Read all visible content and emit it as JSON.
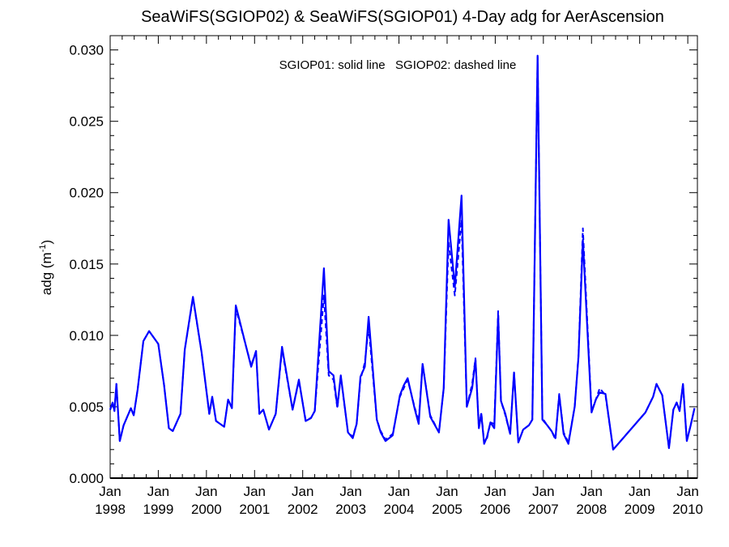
{
  "chart_data": {
    "type": "line",
    "title": "SeaWiFS(SGIOP02) & SeaWiFS(SGIOP01) 4-Day adg for AerAscension",
    "annotation": "SGIOP01: solid line   SGIOP02: dashed line",
    "ylabel_main": "adg (m",
    "ylabel_sup": "-1",
    "ylabel_close": ")",
    "xlabel": "",
    "ylim": [
      0,
      0.031
    ],
    "xlim": [
      1998.0,
      2010.2
    ],
    "yticks": [
      "0.000",
      "0.005",
      "0.010",
      "0.015",
      "0.020",
      "0.025",
      "0.030"
    ],
    "ytick_values": [
      0,
      0.005,
      0.01,
      0.015,
      0.02,
      0.025,
      0.03
    ],
    "xtick_month": "Jan",
    "xtick_years": [
      "1998",
      "1999",
      "2000",
      "2001",
      "2002",
      "2003",
      "2004",
      "2005",
      "2006",
      "2007",
      "2008",
      "2009",
      "2010"
    ],
    "line_color": "#0000ff",
    "zero_line_color": "#000000",
    "series": [
      {
        "name": "SGIOP01",
        "style": "solid",
        "x": [
          1998.0,
          1998.05,
          1998.09,
          1998.13,
          1998.2,
          1998.28,
          1998.43,
          1998.49,
          1998.57,
          1998.69,
          1998.81,
          1999.0,
          1999.12,
          1999.22,
          1999.3,
          1999.46,
          1999.55,
          1999.72,
          1999.9,
          2000.06,
          2000.12,
          2000.2,
          2000.37,
          2000.45,
          2000.53,
          2000.61,
          2000.93,
          2001.03,
          2001.1,
          2001.18,
          2001.3,
          2001.44,
          2001.57,
          2001.79,
          2001.92,
          2002.06,
          2002.17,
          2002.25,
          2002.44,
          2002.54,
          2002.64,
          2002.72,
          2002.79,
          2002.94,
          2003.04,
          2003.12,
          2003.2,
          2003.29,
          2003.37,
          2003.54,
          2003.62,
          2003.72,
          2003.87,
          2004.02,
          2004.1,
          2004.18,
          2004.33,
          2004.41,
          2004.49,
          2004.65,
          2004.83,
          2004.93,
          2005.03,
          2005.16,
          2005.3,
          2005.41,
          2005.52,
          2005.59,
          2005.66,
          2005.71,
          2005.77,
          2005.83,
          2005.9,
          2005.98,
          2006.06,
          2006.12,
          2006.21,
          2006.31,
          2006.39,
          2006.48,
          2006.58,
          2006.7,
          2006.77,
          2006.88,
          2006.98,
          2007.08,
          2007.17,
          2007.25,
          2007.33,
          2007.42,
          2007.52,
          2007.65,
          2007.73,
          2007.82,
          2008.0,
          2008.09,
          2008.17,
          2008.29,
          2008.45,
          2009.12,
          2009.28,
          2009.35,
          2009.47,
          2009.61,
          2009.7,
          2009.77,
          2009.83,
          2009.9,
          2009.98,
          2010.06,
          2010.14
        ]
      },
      {
        "name": "SGIOP02",
        "style": "dashed",
        "x": [
          1998.0,
          1998.05,
          1998.09,
          1998.13,
          1998.2,
          1998.28,
          1998.43,
          1998.49,
          1998.57,
          1998.69,
          1998.81,
          1999.0,
          1999.12,
          1999.22,
          1999.3,
          1999.46,
          1999.55,
          1999.72,
          1999.9,
          2000.06,
          2000.12,
          2000.2,
          2000.37,
          2000.45,
          2000.53,
          2000.61,
          2000.93,
          2001.03,
          2001.1,
          2001.18,
          2001.3,
          2001.44,
          2001.57,
          2001.79,
          2001.92,
          2002.06,
          2002.17,
          2002.25,
          2002.44,
          2002.54,
          2002.64,
          2002.72,
          2002.79,
          2002.94,
          2003.04,
          2003.12,
          2003.2,
          2003.29,
          2003.37,
          2003.54,
          2003.62,
          2003.72,
          2003.87,
          2004.02,
          2004.1,
          2004.18,
          2004.33,
          2004.41,
          2004.49,
          2004.65,
          2004.83,
          2004.93,
          2005.03,
          2005.16,
          2005.3,
          2005.41,
          2005.52,
          2005.59,
          2005.66,
          2005.71,
          2005.77,
          2005.83,
          2005.9,
          2005.98,
          2006.06,
          2006.12,
          2006.21,
          2006.31,
          2006.39,
          2006.48,
          2006.58,
          2006.7,
          2006.77,
          2006.88,
          2006.98,
          2007.08,
          2007.17,
          2007.25,
          2007.33,
          2007.42,
          2007.52,
          2007.65,
          2007.73,
          2007.82,
          2008.0,
          2008.09,
          2008.17,
          2008.29,
          2008.45,
          2009.12,
          2009.28,
          2009.35,
          2009.47,
          2009.61,
          2009.7,
          2009.77,
          2009.83,
          2009.9,
          2009.98,
          2010.06,
          2010.14
        ],
        "values": [
          0.0048,
          0.0053,
          0.0047,
          0.0066,
          0.0026,
          0.0037,
          0.0049,
          0.0044,
          0.0062,
          0.0096,
          0.0103,
          0.0094,
          0.0065,
          0.0035,
          0.0033,
          0.0045,
          0.009,
          0.0126,
          0.0088,
          0.0045,
          0.0056,
          0.004,
          0.0036,
          0.0055,
          0.0049,
          0.0119,
          0.0079,
          0.0089,
          0.0045,
          0.0048,
          0.0034,
          0.0045,
          0.009,
          0.0048,
          0.0068,
          0.0041,
          0.0042,
          0.0047,
          0.0128,
          0.0072,
          0.0069,
          0.0049,
          0.0071,
          0.0032,
          0.0029,
          0.0038,
          0.0069,
          0.0081,
          0.0106,
          0.0041,
          0.0033,
          0.0027,
          0.0031,
          0.0057,
          0.0063,
          0.0069,
          0.0049,
          0.004,
          0.008,
          0.0044,
          0.0032,
          0.0063,
          0.0165,
          0.0128,
          0.0181,
          0.005,
          0.0066,
          0.0084,
          0.0035,
          0.0046,
          0.0025,
          0.0028,
          0.0039,
          0.0038,
          0.0117,
          0.0054,
          0.0044,
          0.0031,
          0.0074,
          0.0025,
          0.0034,
          0.0037,
          0.0041,
          0.0295,
          0.0042,
          0.0037,
          0.0033,
          0.0027,
          0.0059,
          0.0032,
          0.0025,
          0.005,
          0.0086,
          0.0175,
          0.0047,
          0.0055,
          0.0063,
          0.0058,
          0.002,
          0.0046,
          0.0057,
          0.0066,
          0.0058,
          0.0021,
          0.0048,
          0.0053,
          0.0047,
          0.0066,
          0.0026,
          0.0037,
          0.0049
        ]
      }
    ],
    "series_solid_values": [
      0.0048,
      0.0053,
      0.0047,
      0.0066,
      0.0026,
      0.0037,
      0.0049,
      0.0044,
      0.0062,
      0.0096,
      0.0103,
      0.0094,
      0.0065,
      0.0035,
      0.0033,
      0.0045,
      0.009,
      0.0127,
      0.0088,
      0.0045,
      0.0057,
      0.004,
      0.0036,
      0.0055,
      0.0049,
      0.0121,
      0.0078,
      0.0089,
      0.0045,
      0.0048,
      0.0034,
      0.0045,
      0.0092,
      0.0048,
      0.0069,
      0.004,
      0.0042,
      0.0047,
      0.0147,
      0.0075,
      0.0072,
      0.005,
      0.0072,
      0.0032,
      0.0028,
      0.0038,
      0.0071,
      0.0078,
      0.0113,
      0.0041,
      0.0032,
      0.0026,
      0.003,
      0.0058,
      0.0065,
      0.007,
      0.0048,
      0.0038,
      0.008,
      0.0043,
      0.0032,
      0.0063,
      0.0181,
      0.0134,
      0.0198,
      0.005,
      0.0063,
      0.0083,
      0.0035,
      0.0045,
      0.0024,
      0.0029,
      0.0039,
      0.0035,
      0.0114,
      0.0054,
      0.0045,
      0.0031,
      0.0074,
      0.0025,
      0.0034,
      0.0037,
      0.0041,
      0.0296,
      0.0041,
      0.0037,
      0.0033,
      0.0028,
      0.0058,
      0.0031,
      0.0024,
      0.005,
      0.0085,
      0.0167,
      0.0046,
      0.0055,
      0.006,
      0.0059,
      0.002,
      0.0046,
      0.0057,
      0.0066,
      0.0058,
      0.0021,
      0.0048,
      0.0053,
      0.0047,
      0.0066,
      0.0026,
      0.0037,
      0.0049
    ]
  }
}
